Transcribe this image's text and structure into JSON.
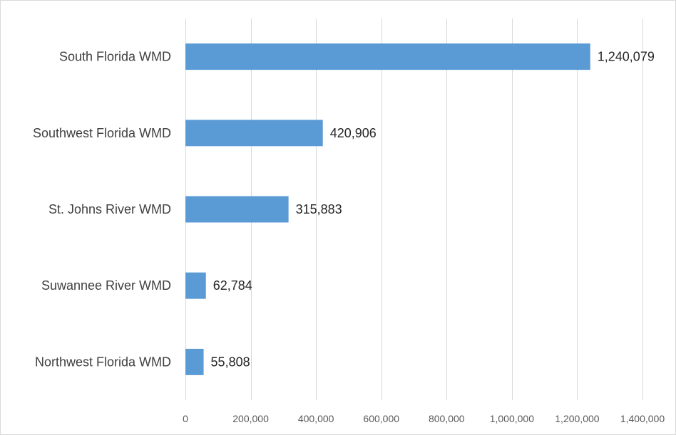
{
  "chart_data": {
    "type": "bar",
    "orientation": "horizontal",
    "categories": [
      "South Florida WMD",
      "Southwest Florida WMD",
      "St. Johns River WMD",
      "Suwannee River WMD",
      "Northwest Florida WMD"
    ],
    "values": [
      1240079,
      420906,
      315883,
      62784,
      55808
    ],
    "value_labels": [
      "1,240,079",
      "420,906",
      "315,883",
      "62,784",
      "55,808"
    ],
    "title": "",
    "xlabel": "",
    "ylabel": "",
    "xlim": [
      0,
      1400000
    ],
    "ticks": [
      0,
      200000,
      400000,
      600000,
      800000,
      1000000,
      1200000,
      1400000
    ],
    "tick_labels": [
      "0",
      "200,000",
      "400,000",
      "600,000",
      "800,000",
      "1,000,000",
      "1,200,000",
      "1,400,000"
    ],
    "grid": true,
    "legend": "none",
    "bar_color": "#5b9bd5"
  }
}
